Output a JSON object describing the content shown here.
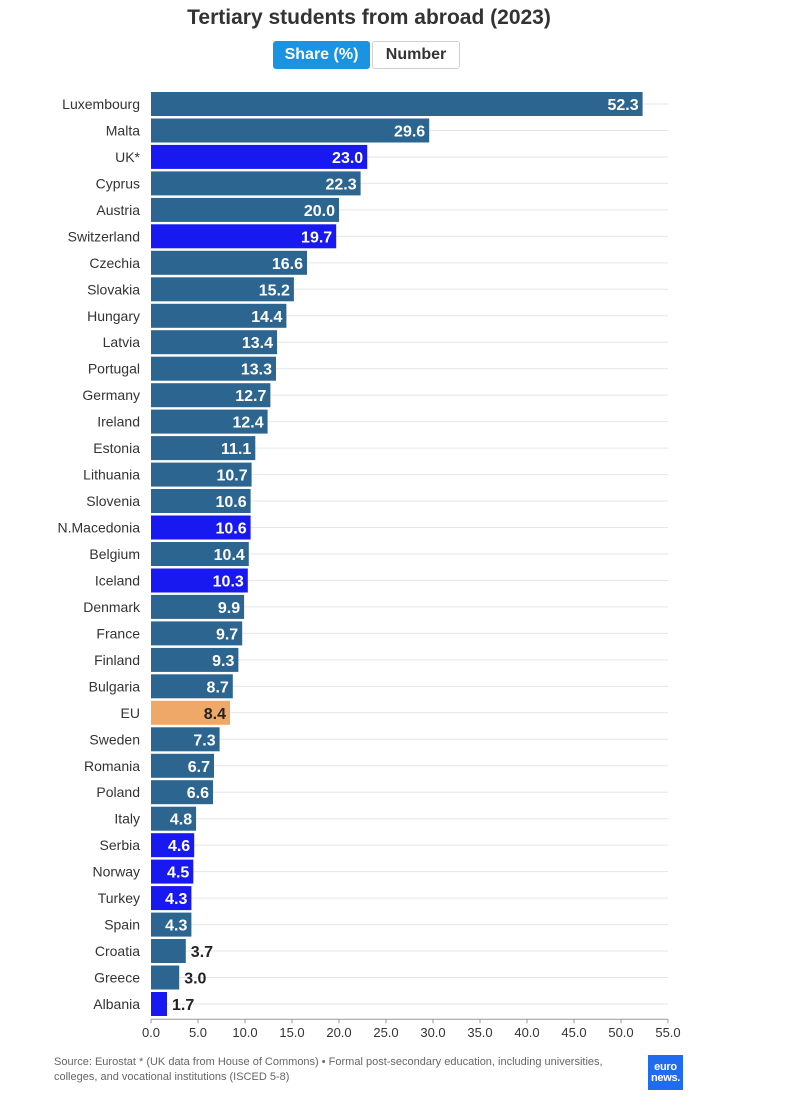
{
  "title": "Tertiary students from abroad (2023)",
  "toggle": {
    "share_label": "Share (%)",
    "number_label": "Number",
    "active": "share"
  },
  "footer": {
    "source": "Source: Eurostat * (UK data from House of Commons) • Formal post-secondary education, including universities, colleges, and vocational institutions (ISCED 5-8)"
  },
  "logo": {
    "line1": "euro",
    "line2": "news."
  },
  "colors": {
    "default_bar": "#2b6590",
    "non_eu_bar": "#1818f0",
    "eu_average_bar": "#f0a868",
    "label_light": "#ffffff",
    "label_dark": "#222222",
    "grid": "#e6e6e6",
    "axis_text": "#333333"
  },
  "chart_data": {
    "type": "bar",
    "orientation": "horizontal",
    "categories": [
      "Luxembourg",
      "Malta",
      "UK*",
      "Cyprus",
      "Austria",
      "Switzerland",
      "Czechia",
      "Slovakia",
      "Hungary",
      "Latvia",
      "Portugal",
      "Germany",
      "Ireland",
      "Estonia",
      "Lithuania",
      "Slovenia",
      "N.Macedonia",
      "Belgium",
      "Iceland",
      "Denmark",
      "France",
      "Finland",
      "Bulgaria",
      "EU",
      "Sweden",
      "Romania",
      "Poland",
      "Italy",
      "Serbia",
      "Norway",
      "Turkey",
      "Spain",
      "Croatia",
      "Greece",
      "Albania"
    ],
    "values": [
      52.3,
      29.6,
      23.0,
      22.3,
      20.0,
      19.7,
      16.6,
      15.2,
      14.4,
      13.4,
      13.3,
      12.7,
      12.4,
      11.1,
      10.7,
      10.6,
      10.6,
      10.4,
      10.3,
      9.9,
      9.7,
      9.3,
      8.7,
      8.4,
      7.3,
      6.7,
      6.6,
      4.8,
      4.6,
      4.5,
      4.3,
      4.3,
      3.7,
      3.0,
      1.7
    ],
    "value_labels": [
      "52.3",
      "29.6",
      "23.0",
      "22.3",
      "20.0",
      "19.7",
      "16.6",
      "15.2",
      "14.4",
      "13.4",
      "13.3",
      "12.7",
      "12.4",
      "11.1",
      "10.7",
      "10.6",
      "10.6",
      "10.4",
      "10.3",
      "9.9",
      "9.7",
      "9.3",
      "8.7",
      "8.4",
      "7.3",
      "6.7",
      "6.6",
      "4.8",
      "4.6",
      "4.5",
      "4.3",
      "4.3",
      "3.7",
      "3.0",
      "1.7"
    ],
    "highlight_non_eu": [
      "UK*",
      "Switzerland",
      "N.Macedonia",
      "Iceland",
      "Serbia",
      "Norway",
      "Turkey",
      "Albania"
    ],
    "highlight_average": [
      "EU"
    ],
    "xlim": [
      0,
      55
    ],
    "xticks": [
      "0.0",
      "5.0",
      "10.0",
      "15.0",
      "20.0",
      "25.0",
      "30.0",
      "35.0",
      "40.0",
      "45.0",
      "50.0",
      "55.0"
    ],
    "xlabel": "",
    "ylabel": "",
    "grid": true,
    "legend": "none"
  }
}
